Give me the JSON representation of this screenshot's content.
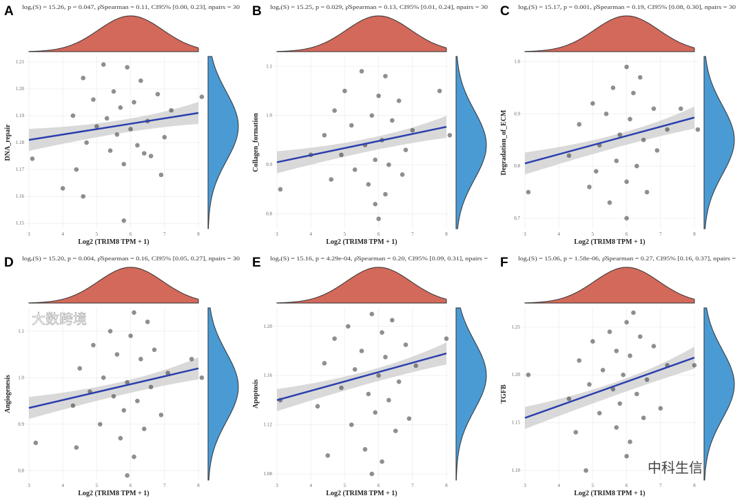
{
  "chart_data": [
    {
      "panel": "A",
      "type": "scatter",
      "stats": "logₑ(S) = 15.26, p = 0.047, ρ̂Spearman = 0.11, CI95% [0.00, 0.23], npairs = 30",
      "xlabel": "Log2 (TRIM8 TPM + 1)",
      "ylabel": "DNA_repair",
      "xlim": [
        3,
        8
      ],
      "xticks": [
        3,
        4,
        5,
        6,
        7,
        8
      ],
      "ylim": [
        1.148,
        1.212
      ],
      "yticks": [
        "1.15",
        "1.16",
        "1.17",
        "1.18",
        "1.19",
        "1.20",
        "1.21"
      ],
      "fit": [
        [
          3,
          1.181
        ],
        [
          8,
          1.191
        ]
      ],
      "x_density_peak": 6.0,
      "y_density_peak": 1.186,
      "points": [
        [
          5.2,
          1.209
        ],
        [
          5.9,
          1.208
        ],
        [
          4.6,
          1.204
        ],
        [
          6.3,
          1.203
        ],
        [
          5.5,
          1.199
        ],
        [
          6.8,
          1.198
        ],
        [
          4.9,
          1.196
        ],
        [
          6.1,
          1.195
        ],
        [
          5.7,
          1.193
        ],
        [
          7.2,
          1.192
        ],
        [
          4.3,
          1.19
        ],
        [
          5.3,
          1.189
        ],
        [
          6.5,
          1.188
        ],
        [
          5.0,
          1.186
        ],
        [
          6.0,
          1.185
        ],
        [
          5.6,
          1.183
        ],
        [
          7.0,
          1.182
        ],
        [
          4.7,
          1.18
        ],
        [
          6.2,
          1.179
        ],
        [
          5.4,
          1.177
        ],
        [
          6.6,
          1.175
        ],
        [
          5.8,
          1.172
        ],
        [
          4.4,
          1.17
        ],
        [
          6.9,
          1.168
        ],
        [
          3.1,
          1.174
        ],
        [
          4.0,
          1.163
        ],
        [
          4.6,
          1.16
        ],
        [
          5.8,
          1.151
        ],
        [
          8.1,
          1.197
        ],
        [
          6.4,
          1.176
        ]
      ]
    },
    {
      "panel": "B",
      "type": "scatter",
      "stats": "logₑ(S) = 15.25, p = 0.029, ρ̂Spearman = 0.13, CI95% [0.01, 0.24], npairs = 30",
      "xlabel": "Log2 (TRIM8 TPM + 1)",
      "ylabel": "Collagen_formation",
      "xlim": [
        3,
        8
      ],
      "xticks": [
        3,
        4,
        5,
        6,
        7,
        8
      ],
      "ylim": [
        0.77,
        1.12
      ],
      "yticks": [
        "0.8",
        "0.9",
        "1.0",
        "1.1"
      ],
      "fit": [
        [
          3,
          0.905
        ],
        [
          8,
          0.977
        ]
      ],
      "x_density_peak": 6.0,
      "y_density_peak": 0.94,
      "points": [
        [
          5.5,
          1.09
        ],
        [
          6.2,
          1.08
        ],
        [
          5.0,
          1.05
        ],
        [
          6.0,
          1.04
        ],
        [
          6.6,
          1.03
        ],
        [
          4.7,
          1.01
        ],
        [
          5.8,
          1.0
        ],
        [
          6.4,
          0.99
        ],
        [
          5.2,
          0.98
        ],
        [
          7.0,
          0.97
        ],
        [
          4.4,
          0.96
        ],
        [
          6.1,
          0.95
        ],
        [
          5.6,
          0.94
        ],
        [
          6.8,
          0.93
        ],
        [
          4.9,
          0.92
        ],
        [
          5.9,
          0.91
        ],
        [
          6.3,
          0.9
        ],
        [
          5.3,
          0.89
        ],
        [
          6.7,
          0.88
        ],
        [
          4.6,
          0.87
        ],
        [
          5.7,
          0.86
        ],
        [
          6.2,
          0.84
        ],
        [
          5.9,
          0.82
        ],
        [
          6.0,
          0.79
        ],
        [
          3.1,
          0.85
        ],
        [
          7.8,
          1.05
        ],
        [
          8.1,
          0.96
        ],
        [
          4.0,
          0.92
        ]
      ]
    },
    {
      "panel": "C",
      "type": "scatter",
      "stats": "logₑ(S) = 15.17, p = 0.001, ρ̂Spearman = 0.19, CI95% [0.08, 0.30], npairs = 30",
      "xlabel": "Log2 (TRIM8 TPM + 1)",
      "ylabel": "Degradation_of_ECM",
      "xlim": [
        3,
        8
      ],
      "xticks": [
        3,
        4,
        5,
        6,
        7,
        8
      ],
      "ylim": [
        0.68,
        1.01
      ],
      "yticks": [
        "0.7",
        "0.8",
        "0.9",
        "1.0"
      ],
      "fit": [
        [
          3,
          0.805
        ],
        [
          8,
          0.893
        ]
      ],
      "x_density_peak": 6.0,
      "y_density_peak": 0.85,
      "points": [
        [
          6.0,
          0.99
        ],
        [
          6.4,
          0.97
        ],
        [
          5.6,
          0.95
        ],
        [
          6.2,
          0.94
        ],
        [
          5.0,
          0.92
        ],
        [
          6.8,
          0.91
        ],
        [
          5.4,
          0.9
        ],
        [
          6.1,
          0.89
        ],
        [
          4.6,
          0.88
        ],
        [
          7.2,
          0.87
        ],
        [
          5.8,
          0.86
        ],
        [
          6.5,
          0.85
        ],
        [
          5.2,
          0.84
        ],
        [
          6.9,
          0.83
        ],
        [
          4.3,
          0.82
        ],
        [
          5.7,
          0.81
        ],
        [
          6.3,
          0.8
        ],
        [
          5.1,
          0.79
        ],
        [
          6.0,
          0.77
        ],
        [
          4.9,
          0.76
        ],
        [
          6.6,
          0.75
        ],
        [
          5.5,
          0.73
        ],
        [
          3.1,
          0.75
        ],
        [
          7.6,
          0.91
        ],
        [
          8.1,
          0.87
        ],
        [
          6.0,
          0.7
        ]
      ]
    },
    {
      "panel": "D",
      "type": "scatter",
      "stats": "logₑ(S) = 15.20, p = 0.004, ρ̂Spearman = 0.16, CI95% [0.05, 0.27], npairs = 30",
      "xlabel": "Log2 (TRIM8 TPM + 1)",
      "ylabel": "Angiogenesis",
      "xlim": [
        3,
        8
      ],
      "xticks": [
        3,
        4,
        5,
        6,
        7,
        8
      ],
      "ylim": [
        0.78,
        1.15
      ],
      "yticks": [
        "0.8",
        "0.9",
        "1.0",
        "1.1"
      ],
      "fit": [
        [
          3,
          0.935
        ],
        [
          8,
          1.02
        ]
      ],
      "x_density_peak": 6.0,
      "y_density_peak": 0.98,
      "points": [
        [
          6.1,
          1.14
        ],
        [
          6.5,
          1.12
        ],
        [
          5.4,
          1.1
        ],
        [
          6.0,
          1.09
        ],
        [
          4.9,
          1.07
        ],
        [
          6.7,
          1.06
        ],
        [
          5.6,
          1.05
        ],
        [
          6.3,
          1.04
        ],
        [
          4.5,
          1.02
        ],
        [
          7.1,
          1.01
        ],
        [
          5.2,
          1.0
        ],
        [
          5.9,
          0.99
        ],
        [
          6.6,
          0.98
        ],
        [
          4.8,
          0.97
        ],
        [
          5.5,
          0.96
        ],
        [
          6.2,
          0.95
        ],
        [
          4.3,
          0.94
        ],
        [
          5.8,
          0.93
        ],
        [
          6.9,
          0.92
        ],
        [
          5.1,
          0.9
        ],
        [
          6.4,
          0.89
        ],
        [
          5.7,
          0.87
        ],
        [
          4.4,
          0.85
        ],
        [
          6.1,
          0.83
        ],
        [
          3.2,
          0.86
        ],
        [
          7.8,
          1.04
        ],
        [
          8.1,
          1.0
        ],
        [
          5.9,
          0.79
        ]
      ]
    },
    {
      "panel": "E",
      "type": "scatter",
      "stats": "logₑ(S) = 15.16, p = 4.29e-04, ρ̂Spearman = 0.20, CI95% [0.09, 0.31], npairs =",
      "xlabel": "Log2 (TRIM8 TPM + 1)",
      "ylabel": "Apoptosis",
      "xlim": [
        3,
        8
      ],
      "xticks": [
        3,
        4,
        5,
        6,
        7,
        8
      ],
      "ylim": [
        1.075,
        1.215
      ],
      "yticks": [
        "1.08",
        "1.12",
        "1.16",
        "1.20"
      ],
      "fit": [
        [
          3,
          1.14
        ],
        [
          8,
          1.178
        ]
      ],
      "x_density_peak": 6.0,
      "y_density_peak": 1.16,
      "points": [
        [
          5.8,
          1.21
        ],
        [
          6.4,
          1.205
        ],
        [
          5.1,
          1.2
        ],
        [
          6.1,
          1.195
        ],
        [
          4.7,
          1.19
        ],
        [
          6.8,
          1.185
        ],
        [
          5.5,
          1.18
        ],
        [
          6.2,
          1.175
        ],
        [
          4.4,
          1.17
        ],
        [
          7.1,
          1.168
        ],
        [
          5.3,
          1.165
        ],
        [
          6.0,
          1.16
        ],
        [
          6.6,
          1.155
        ],
        [
          4.9,
          1.15
        ],
        [
          5.7,
          1.145
        ],
        [
          6.3,
          1.14
        ],
        [
          4.2,
          1.135
        ],
        [
          5.9,
          1.13
        ],
        [
          6.9,
          1.125
        ],
        [
          5.2,
          1.12
        ],
        [
          6.5,
          1.115
        ],
        [
          5.6,
          1.1
        ],
        [
          4.5,
          1.095
        ],
        [
          6.1,
          1.09
        ],
        [
          3.1,
          1.14
        ],
        [
          8.0,
          1.19
        ],
        [
          5.8,
          1.08
        ]
      ]
    },
    {
      "panel": "F",
      "type": "scatter",
      "stats": "logₑ(S) = 15.06, p = 1.58e-06, ρ̂Spearman = 0.27, CI95% [0.16, 0.37], npairs =",
      "xlabel": "Log2 (TRIM8 TPM + 1)",
      "ylabel": "TGFB",
      "xlim": [
        3,
        8
      ],
      "xticks": [
        3,
        4,
        5,
        6,
        7,
        8
      ],
      "ylim": [
        1.09,
        1.27
      ],
      "yticks": [
        "1.10",
        "1.15",
        "1.20",
        "1.25"
      ],
      "fit": [
        [
          3,
          1.155
        ],
        [
          8,
          1.218
        ]
      ],
      "x_density_peak": 6.0,
      "y_density_peak": 1.19,
      "points": [
        [
          6.2,
          1.265
        ],
        [
          6.0,
          1.255
        ],
        [
          5.5,
          1.245
        ],
        [
          6.4,
          1.24
        ],
        [
          5.0,
          1.235
        ],
        [
          6.8,
          1.23
        ],
        [
          5.7,
          1.225
        ],
        [
          6.1,
          1.22
        ],
        [
          4.6,
          1.215
        ],
        [
          7.2,
          1.21
        ],
        [
          5.3,
          1.205
        ],
        [
          5.9,
          1.2
        ],
        [
          6.6,
          1.195
        ],
        [
          4.9,
          1.19
        ],
        [
          5.6,
          1.185
        ],
        [
          6.3,
          1.18
        ],
        [
          4.3,
          1.175
        ],
        [
          5.8,
          1.17
        ],
        [
          7.0,
          1.165
        ],
        [
          5.2,
          1.16
        ],
        [
          6.5,
          1.155
        ],
        [
          5.7,
          1.145
        ],
        [
          4.5,
          1.14
        ],
        [
          6.1,
          1.13
        ],
        [
          4.8,
          1.1
        ],
        [
          3.1,
          1.2
        ],
        [
          8.0,
          1.21
        ],
        [
          6.0,
          1.115
        ]
      ]
    }
  ],
  "colors": {
    "x_density": "#d2695a",
    "y_density": "#4a9ad4",
    "fit_line": "#2b3fae",
    "ci_band": "#d0d0d0",
    "points": "#333333"
  },
  "watermarks": {
    "left": "大数跨境",
    "right": "中科生信"
  }
}
